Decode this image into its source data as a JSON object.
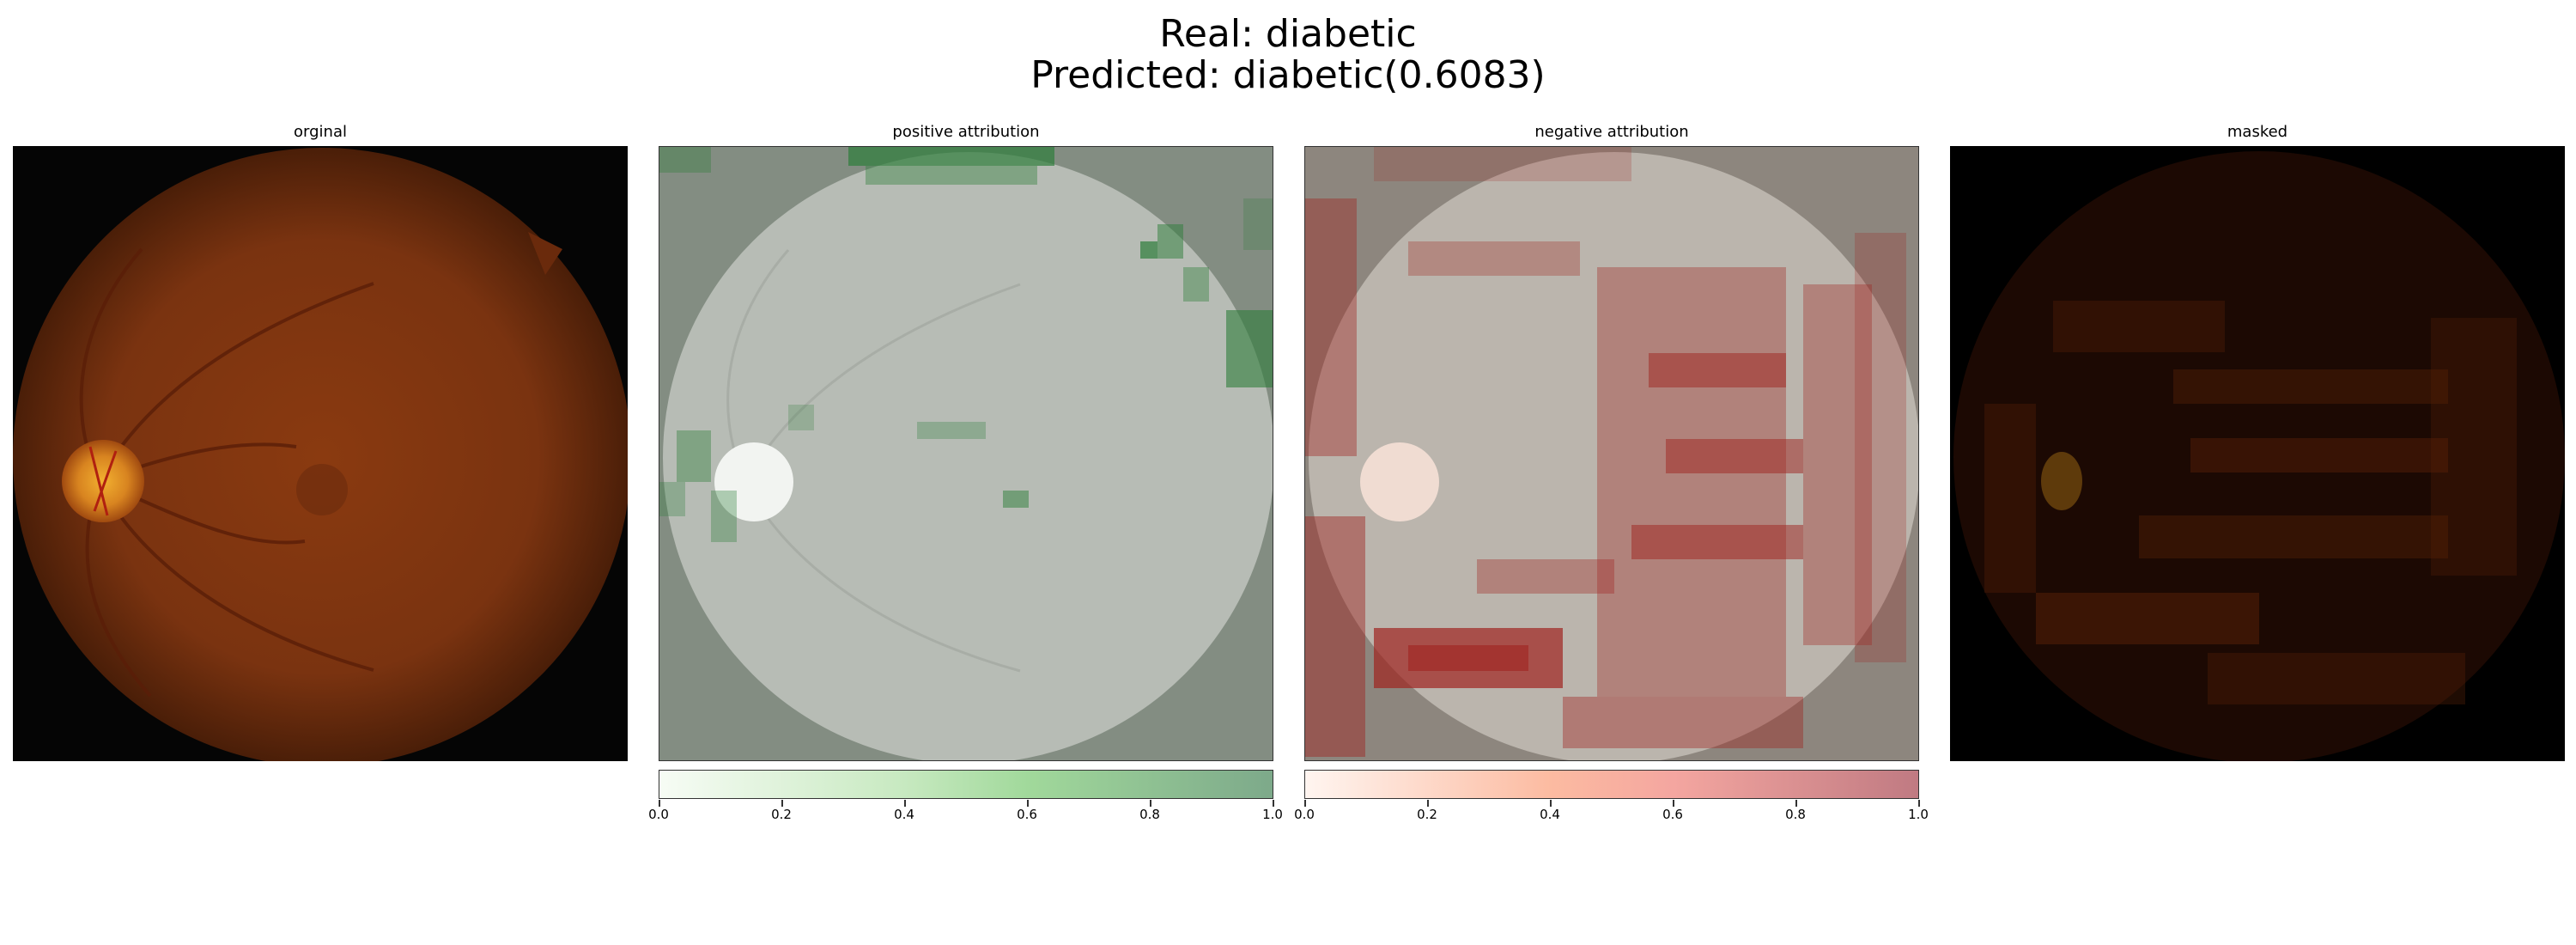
{
  "figure": {
    "title_line1": "Real: diabetic",
    "title_line2": "Predicted: diabetic(0.6083)"
  },
  "panels": [
    {
      "id": "original",
      "title": "orginal"
    },
    {
      "id": "positive",
      "title": "positive attribution"
    },
    {
      "id": "negative",
      "title": "negative attribution"
    },
    {
      "id": "masked",
      "title": "masked"
    }
  ],
  "colorbars": {
    "positive": {
      "ticks": [
        "0.0",
        "0.2",
        "0.4",
        "0.6",
        "0.8",
        "1.0"
      ],
      "color_low": "#f7fcf5",
      "color_high": "#7da98a"
    },
    "negative": {
      "ticks": [
        "0.0",
        "0.2",
        "0.4",
        "0.6",
        "0.8",
        "1.0"
      ],
      "color_low": "#fff5f0",
      "color_high": "#c07a82"
    }
  }
}
